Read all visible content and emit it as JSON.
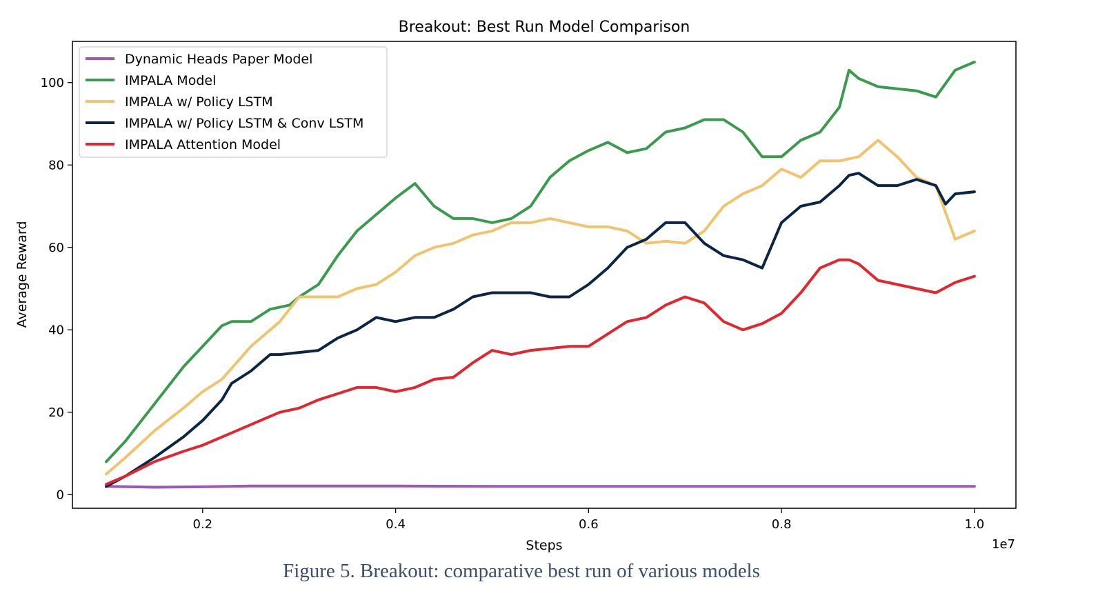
{
  "caption": "Figure 5. Breakout: comparative best run of various models",
  "chart_data": {
    "type": "line",
    "title": "Breakout: Best Run Model Comparison",
    "xlabel": "Steps",
    "ylabel": "Average Reward",
    "x_offset_label": "1e7",
    "xlim": [
      0.065,
      1.043
    ],
    "ylim": [
      -3.3,
      110
    ],
    "xticks": [
      0.2,
      0.4,
      0.6,
      0.8,
      1.0
    ],
    "xtick_labels": [
      "0.2",
      "0.4",
      "0.6",
      "0.8",
      "1.0"
    ],
    "yticks": [
      0,
      20,
      40,
      60,
      80,
      100
    ],
    "ytick_labels": [
      "0",
      "20",
      "40",
      "60",
      "80",
      "100"
    ],
    "grid": false,
    "legend_position": "top-left",
    "series": [
      {
        "name": "Dynamic Heads Paper Model",
        "color": "#9b59b6",
        "x": [
          0.1,
          0.15,
          0.2,
          0.25,
          0.3,
          0.4,
          0.5,
          0.6,
          0.7,
          0.8,
          0.9,
          0.95,
          1.0
        ],
        "y": [
          2.0,
          1.8,
          1.9,
          2.1,
          2.1,
          2.1,
          2.0,
          2.0,
          2.0,
          2.0,
          2.0,
          2.0,
          2.0
        ]
      },
      {
        "name": "IMPALA Model",
        "color": "#3a9a4e",
        "x": [
          0.1,
          0.12,
          0.15,
          0.18,
          0.2,
          0.22,
          0.23,
          0.25,
          0.27,
          0.29,
          0.3,
          0.32,
          0.34,
          0.36,
          0.38,
          0.4,
          0.42,
          0.44,
          0.46,
          0.48,
          0.5,
          0.52,
          0.54,
          0.56,
          0.58,
          0.6,
          0.62,
          0.64,
          0.66,
          0.68,
          0.7,
          0.72,
          0.74,
          0.76,
          0.78,
          0.8,
          0.82,
          0.84,
          0.86,
          0.87,
          0.88,
          0.9,
          0.92,
          0.94,
          0.96,
          0.98,
          1.0
        ],
        "y": [
          8,
          13,
          22,
          31,
          36,
          41,
          42,
          42,
          45,
          46,
          48,
          51,
          58,
          64,
          68,
          72,
          75.5,
          70,
          67,
          67,
          66,
          67,
          70,
          77,
          81,
          83.5,
          85.5,
          83,
          84,
          88,
          89,
          91,
          91,
          88,
          82,
          82,
          86,
          88,
          94,
          103,
          101,
          99,
          98.5,
          98,
          96.5,
          103,
          105
        ]
      },
      {
        "name": "IMPALA w/ Policy LSTM",
        "color": "#f0c36d",
        "x": [
          0.1,
          0.12,
          0.15,
          0.18,
          0.2,
          0.22,
          0.25,
          0.28,
          0.3,
          0.32,
          0.34,
          0.36,
          0.38,
          0.4,
          0.42,
          0.44,
          0.46,
          0.48,
          0.5,
          0.52,
          0.54,
          0.56,
          0.58,
          0.6,
          0.62,
          0.64,
          0.66,
          0.68,
          0.7,
          0.72,
          0.74,
          0.76,
          0.78,
          0.8,
          0.82,
          0.84,
          0.86,
          0.88,
          0.9,
          0.92,
          0.94,
          0.96,
          0.98,
          1.0
        ],
        "y": [
          5,
          9,
          15.5,
          21,
          25,
          28,
          36,
          42,
          48,
          48,
          48,
          50,
          51,
          54,
          58,
          60,
          61,
          63,
          64,
          66,
          66,
          67,
          66,
          65,
          65,
          64,
          61,
          61.5,
          61,
          64,
          70,
          73,
          75,
          79,
          77,
          81,
          81,
          82,
          86,
          82,
          77,
          75,
          62,
          64
        ]
      },
      {
        "name": "IMPALA w/ Policy LSTM & Conv LSTM",
        "color": "#0b2545",
        "x": [
          0.1,
          0.12,
          0.15,
          0.18,
          0.2,
          0.22,
          0.23,
          0.25,
          0.27,
          0.28,
          0.3,
          0.32,
          0.34,
          0.36,
          0.38,
          0.4,
          0.42,
          0.44,
          0.46,
          0.48,
          0.5,
          0.52,
          0.54,
          0.56,
          0.58,
          0.6,
          0.62,
          0.64,
          0.66,
          0.68,
          0.7,
          0.72,
          0.74,
          0.76,
          0.78,
          0.8,
          0.82,
          0.84,
          0.86,
          0.87,
          0.88,
          0.9,
          0.92,
          0.94,
          0.96,
          0.97,
          0.98,
          1.0
        ],
        "y": [
          2,
          4.5,
          9,
          14,
          18,
          23,
          27,
          30,
          34,
          34,
          34.5,
          35,
          38,
          40,
          43,
          42,
          43,
          43,
          45,
          48,
          49,
          49,
          49,
          48,
          48,
          51,
          55,
          60,
          62,
          66,
          66,
          61,
          58,
          57,
          55,
          66,
          70,
          71,
          75,
          77.5,
          78,
          75,
          75,
          76.5,
          75,
          70.5,
          73,
          73.5
        ]
      },
      {
        "name": "IMPALA Attention Model",
        "color": "#e0262f",
        "x": [
          0.1,
          0.12,
          0.15,
          0.18,
          0.2,
          0.23,
          0.25,
          0.28,
          0.3,
          0.32,
          0.34,
          0.36,
          0.38,
          0.4,
          0.42,
          0.44,
          0.46,
          0.48,
          0.5,
          0.52,
          0.54,
          0.56,
          0.58,
          0.6,
          0.62,
          0.64,
          0.66,
          0.68,
          0.7,
          0.72,
          0.74,
          0.76,
          0.78,
          0.8,
          0.82,
          0.84,
          0.86,
          0.87,
          0.88,
          0.9,
          0.92,
          0.94,
          0.96,
          0.98,
          1.0
        ],
        "y": [
          2.5,
          4.5,
          8,
          10.5,
          12,
          15,
          17,
          20,
          21,
          23,
          24.5,
          26,
          26,
          25,
          26,
          28,
          28.5,
          32,
          35,
          34,
          35,
          35.5,
          36,
          36,
          39,
          42,
          43,
          46,
          48,
          46.5,
          42,
          40,
          41.5,
          44,
          49,
          55,
          57,
          57,
          56,
          52,
          51,
          50,
          49,
          51.5,
          53
        ]
      }
    ]
  }
}
